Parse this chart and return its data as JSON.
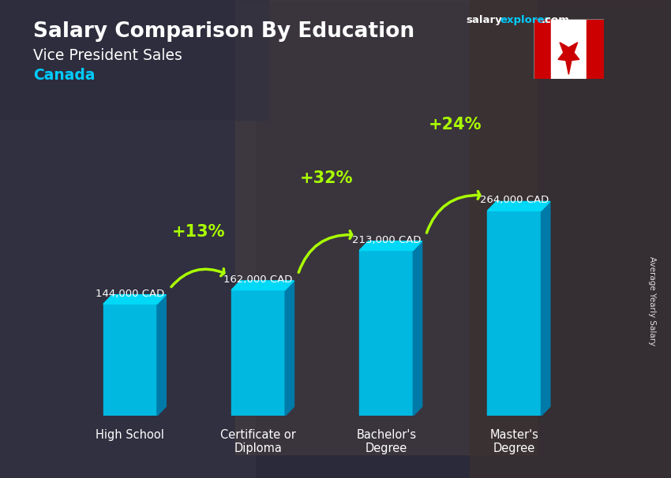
{
  "title1": "Salary Comparison By Education",
  "title2": "Vice President Sales",
  "title3": "Canada",
  "ylabel": "Average Yearly Salary",
  "categories": [
    "High School",
    "Certificate or\nDiploma",
    "Bachelor's\nDegree",
    "Master's\nDegree"
  ],
  "values": [
    144000,
    162000,
    213000,
    264000
  ],
  "value_labels": [
    "144,000 CAD",
    "162,000 CAD",
    "213,000 CAD",
    "264,000 CAD"
  ],
  "pct_labels": [
    "+13%",
    "+32%",
    "+24%"
  ],
  "bar_face_color": "#00b8e0",
  "bar_side_color": "#007aa8",
  "bar_top_color": "#00d8f8",
  "arrow_color": "#aaff00",
  "title_color": "#ffffff",
  "canada_color": "#00ccff",
  "value_color": "#ffffff",
  "pct_color": "#aaff00",
  "bg_color": "#2a2a3a",
  "ylim": [
    0,
    320000
  ],
  "brand_salary_color": "#ffffff",
  "brand_explorer_color": "#00ccff",
  "brand_com_color": "#ffffff"
}
